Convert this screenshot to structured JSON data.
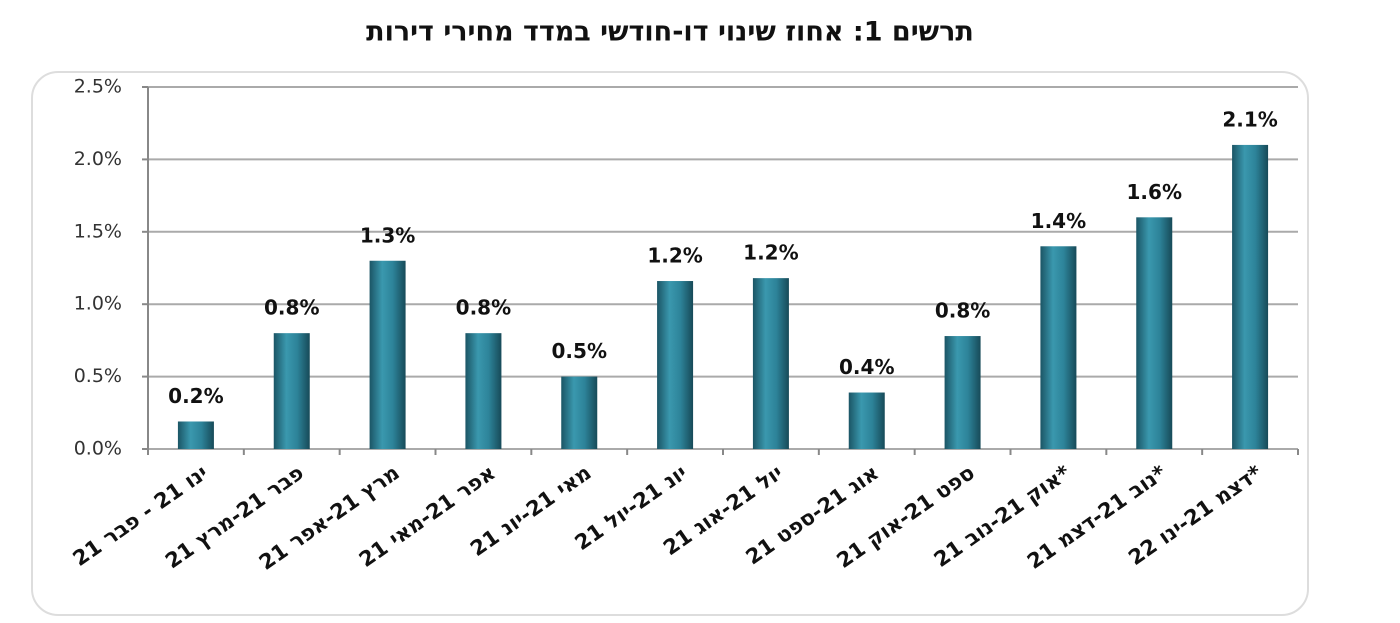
{
  "chart_data": {
    "type": "bar",
    "title": "תרשים 1: אחוז שינוי דו-חודשי במדד מחירי דירות",
    "categories": [
      "ינו 21 - פבר 21",
      "פבר 21-מרץ 21",
      "מרץ 21-אפר 21",
      "אפר 21-מאי 21",
      "מאי 21-יונ 21",
      "יונ 21-יול 21",
      "יול 21-אוג 21",
      "אוג 21-ספט 21",
      "ספט 21-אוק 21",
      "אוק 21-נוב 21*",
      "נוב 21-דצמ 21*",
      "דצמ 21-ינו 22*"
    ],
    "values": [
      0.19,
      0.8,
      1.3,
      0.8,
      0.5,
      1.16,
      1.18,
      0.39,
      0.78,
      1.4,
      1.6,
      2.1
    ],
    "value_labels": [
      "0.2%",
      "0.8%",
      "1.3%",
      "0.8%",
      "0.5%",
      "1.2%",
      "1.2%",
      "0.4%",
      "0.8%",
      "1.4%",
      "1.6%",
      "2.1%"
    ],
    "color": "#2a7f95",
    "ylim": [
      0,
      2.5
    ],
    "yticks": [
      {
        "value": 0,
        "label": "0.0%"
      },
      {
        "value": 0.5,
        "label": "0.5%"
      },
      {
        "value": 1,
        "label": "1.0%"
      },
      {
        "value": 1.5,
        "label": "1.5%"
      },
      {
        "value": 2,
        "label": "2.0%"
      },
      {
        "value": 2.5,
        "label": "2.5%"
      }
    ],
    "grid": true
  }
}
